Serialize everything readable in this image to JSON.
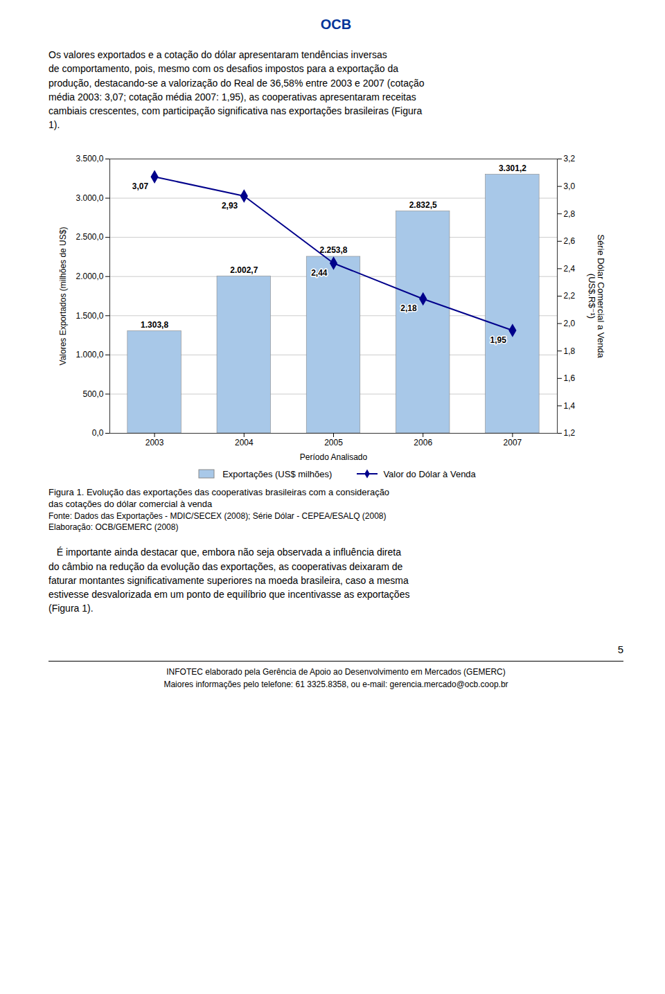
{
  "chart_data": {
    "type": "bar",
    "annotations": [
      "OCB",
      "Os valores exportados e a cotação do dólar apresentaram tendências inversas\nde comportamento, pois, mesmo com os desafios impostos para a exportação da\nprodução, destacando-se a valorização do Real de 36,58% entre 2003 e 2007 (cotação\nmédia 2003: 3,07; cotação média 2007: 1,95), as cooperativas apresentaram receitas\ncambiais crescentes, com participação significativa nas exportações brasileiras (Figura\n1).",
      "Figura 1. Evolução das exportações das cooperativas brasileiras com a consideração",
      "das cotações do dólar comercial à venda",
      "Fonte: Dados das Exportações - MDIC/SECEX (2008); Série Dólar - CEPEA/ESALQ (2008)",
      "Elaboração: OCB/GEMERC (2008)",
      "   É importante ainda destacar que, embora não seja observada a influência direta\ndo câmbio na redução da evolução das exportações, as cooperativas deixaram de\nfaturar montantes significativamente superiores na moeda brasileira, caso a mesma\nestivesse desvalorizada em um ponto de equilíbrio que incentivasse as exportações\n(Figura 1).",
      "5",
      "INFOTEC elaborado pela Gerência de Apoio ao Desenvolvimento em Mercados (GEMERC)",
      "Maiores informações pelo telefone: 61 3325.8358, ou e-mail: gerencia.mercado@ocb.coop.br"
    ],
    "xlabel": "Período Analisado",
    "ylabel": "Valores Exportados (milhões de US$)",
    "y2label": "Série Dólar Comercial a Venda\n(US$.R$⁻¹)",
    "x": [
      2003,
      2004,
      2005,
      2006,
      2007
    ],
    "xlim": [
      2002.5,
      2007.5
    ],
    "xticks": [
      2003,
      2004,
      2005,
      2006,
      2007
    ],
    "ylim": [
      0,
      3500
    ],
    "yticks": [
      {
        "value": 0,
        "label": "0,0"
      },
      {
        "value": 500,
        "label": "500,0"
      },
      {
        "value": 1000,
        "label": "1.000,0"
      },
      {
        "value": 1500,
        "label": "1.500,0"
      },
      {
        "value": 2000,
        "label": "2.000,0"
      },
      {
        "value": 2500,
        "label": "2.500,0"
      },
      {
        "value": 3000,
        "label": "3.000,0"
      },
      {
        "value": 3500,
        "label": "3.500,0"
      }
    ],
    "y2lim": [
      1.2,
      3.2
    ],
    "y2ticks": [
      {
        "value": 1.2,
        "label": "1,2"
      },
      {
        "value": 1.4,
        "label": "1,4"
      },
      {
        "value": 1.6,
        "label": "1,6"
      },
      {
        "value": 1.8,
        "label": "1,8"
      },
      {
        "value": 2.0,
        "label": "2,0"
      },
      {
        "value": 2.2,
        "label": "2,2"
      },
      {
        "value": 2.4,
        "label": "2,4"
      },
      {
        "value": 2.6,
        "label": "2,6"
      },
      {
        "value": 2.8,
        "label": "2,8"
      },
      {
        "value": 3.0,
        "label": "3,0"
      },
      {
        "value": 3.2,
        "label": "3,2"
      }
    ],
    "series": [
      {
        "name": "Exportações (US$ milhões)",
        "type": "bar",
        "color": "#a8c8e8",
        "values": [
          1303.84,
          2002.71,
          2253.82,
          2832.49,
          3301.21
        ],
        "value_labels": [
          "1.303,8",
          "2.002,7",
          "2.253,8",
          "2.832,5",
          "3.301,2"
        ]
      },
      {
        "name": "Valor do Dólar à Venda",
        "type": "line",
        "axis": "y2",
        "color": "#00008B",
        "marker": "diamond",
        "values": [
          3.07,
          2.93,
          2.44,
          2.18,
          1.95
        ],
        "value_labels": [
          "3,07",
          "2,93",
          "2,44",
          "2,18",
          "1,95"
        ]
      }
    ],
    "grid": true,
    "legend": "bottom",
    "data_labels": true
  }
}
